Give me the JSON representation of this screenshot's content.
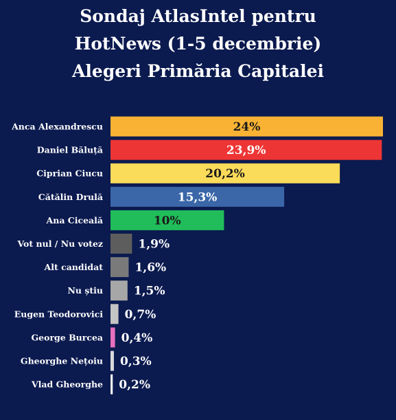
{
  "title_lines": [
    "Sondaj AtlasIntel pentru",
    "HotNews (1-5 decembrie)",
    "Alegeri Primăria Capitalei"
  ],
  "chart_data": {
    "type": "bar",
    "orientation": "horizontal",
    "title": "Sondaj AtlasIntel pentru HotNews (1-5 decembrie) Alegeri Primăria Capitalei",
    "categories": [
      "Anca Alexandrescu",
      "Daniel Băluță",
      "Ciprian Ciucu",
      "Cătălin Drulă",
      "Ana Ciceală",
      "Vot nul / Nu votez",
      "Alt candidat",
      "Nu știu",
      "Eugen Teodorovici",
      "George Burcea",
      "Gheorghe Nețoiu",
      "Vlad Gheorghe"
    ],
    "values": [
      24,
      23.9,
      20.2,
      15.3,
      10,
      1.9,
      1.6,
      1.5,
      0.7,
      0.4,
      0.3,
      0.2
    ],
    "value_labels": [
      "24%",
      "23,9%",
      "20,2%",
      "15,3%",
      "10%",
      "1,9%",
      "1,6%",
      "1,5%",
      "0,7%",
      "0,4%",
      "0,3%",
      "0,2%"
    ],
    "colors": [
      "#f9b233",
      "#ee3535",
      "#fbdb5a",
      "#3b67a8",
      "#20bd5a",
      "#5d5d5d",
      "#7a7a7a",
      "#a7a7a7",
      "#c4c4c4",
      "#e86fbd",
      "#d9d9d9",
      "#ececec"
    ],
    "label_inside": [
      true,
      true,
      true,
      true,
      true,
      false,
      false,
      false,
      false,
      false,
      false,
      false
    ],
    "label_colors": [
      "#1a1a1a",
      "#ffffff",
      "#1a1a1a",
      "#ffffff",
      "#1a1a1a",
      "#ffffff",
      "#ffffff",
      "#ffffff",
      "#ffffff",
      "#ffffff",
      "#ffffff",
      "#ffffff"
    ],
    "xlim": [
      0,
      24
    ],
    "grid": false,
    "legend": "none"
  }
}
